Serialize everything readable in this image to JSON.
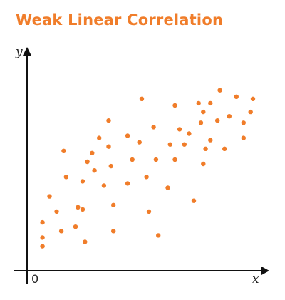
{
  "chart_data": {
    "type": "scatter",
    "title": "Weak Linear Correlation",
    "xlabel": "x",
    "ylabel": "y",
    "origin_label": "0",
    "color": "#f07d2a",
    "axis_color": "#111111",
    "xlim": [
      0,
      10
    ],
    "ylim": [
      0,
      10
    ],
    "grid": false,
    "points": [
      [
        0.8,
        1.1
      ],
      [
        0.8,
        1.5
      ],
      [
        0.8,
        2.2
      ],
      [
        1.1,
        3.4
      ],
      [
        1.4,
        2.7
      ],
      [
        1.6,
        1.8
      ],
      [
        1.7,
        5.5
      ],
      [
        1.8,
        4.3
      ],
      [
        2.2,
        2.0
      ],
      [
        2.3,
        2.9
      ],
      [
        2.5,
        2.8
      ],
      [
        2.5,
        4.1
      ],
      [
        2.6,
        1.3
      ],
      [
        2.9,
        5.4
      ],
      [
        2.7,
        5.0
      ],
      [
        3.0,
        4.6
      ],
      [
        3.2,
        6.1
      ],
      [
        3.4,
        3.9
      ],
      [
        3.6,
        6.9
      ],
      [
        3.6,
        5.7
      ],
      [
        3.7,
        4.8
      ],
      [
        3.8,
        1.8
      ],
      [
        3.8,
        3.0
      ],
      [
        4.4,
        6.2
      ],
      [
        4.4,
        4.0
      ],
      [
        4.6,
        5.1
      ],
      [
        4.9,
        5.9
      ],
      [
        5.0,
        7.9
      ],
      [
        5.3,
        2.7
      ],
      [
        5.2,
        4.3
      ],
      [
        5.5,
        6.6
      ],
      [
        5.6,
        5.1
      ],
      [
        5.7,
        1.6
      ],
      [
        6.2,
        5.8
      ],
      [
        6.1,
        3.8
      ],
      [
        6.4,
        7.6
      ],
      [
        6.4,
        5.1
      ],
      [
        6.6,
        6.5
      ],
      [
        6.8,
        5.8
      ],
      [
        7.0,
        6.3
      ],
      [
        7.2,
        3.2
      ],
      [
        7.4,
        7.7
      ],
      [
        7.5,
        6.8
      ],
      [
        7.6,
        4.9
      ],
      [
        7.7,
        5.6
      ],
      [
        7.6,
        7.3
      ],
      [
        7.9,
        7.7
      ],
      [
        7.9,
        6.0
      ],
      [
        8.3,
        8.3
      ],
      [
        8.2,
        6.9
      ],
      [
        8.5,
        5.6
      ],
      [
        8.7,
        7.1
      ],
      [
        9.0,
        8.0
      ],
      [
        9.3,
        6.8
      ],
      [
        9.3,
        6.1
      ],
      [
        9.6,
        7.3
      ],
      [
        9.7,
        7.9
      ]
    ]
  }
}
